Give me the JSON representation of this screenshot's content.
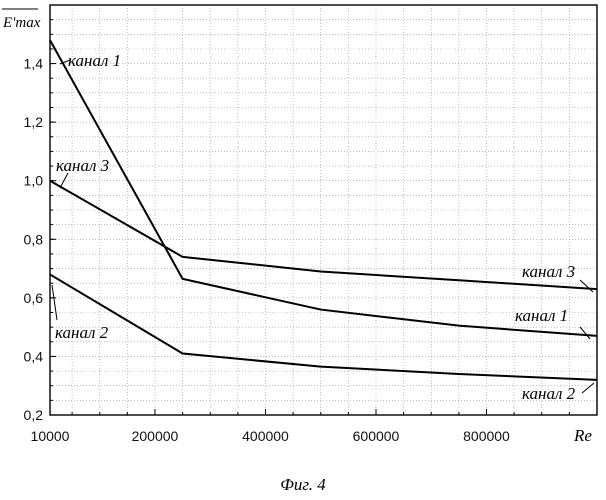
{
  "chart_data": {
    "type": "line",
    "title": "",
    "ylabel": "E'max",
    "xlabel": "Re",
    "xlim": [
      10000,
      1000000
    ],
    "ylim": [
      0.2,
      1.6
    ],
    "x_ticks": [
      "10000",
      "200000",
      "400000",
      "600000",
      "800000"
    ],
    "y_ticks": [
      "0,2",
      "0,4",
      "0,6",
      "0,8",
      "1,0",
      "1,2",
      "1,4"
    ],
    "series": [
      {
        "name": "канал 1",
        "x": [
          10000,
          250000,
          500000,
          750000,
          1000000
        ],
        "y": [
          1.48,
          0.665,
          0.56,
          0.505,
          0.47
        ]
      },
      {
        "name": "канал 2",
        "x": [
          10000,
          250000,
          500000,
          750000,
          1000000
        ],
        "y": [
          0.68,
          0.41,
          0.365,
          0.34,
          0.32
        ]
      },
      {
        "name": "канал 3",
        "x": [
          10000,
          250000,
          500000,
          750000,
          1000000
        ],
        "y": [
          1.0,
          0.74,
          0.69,
          0.66,
          0.63
        ]
      }
    ],
    "caption": "Фиг. 4",
    "grid": true
  }
}
